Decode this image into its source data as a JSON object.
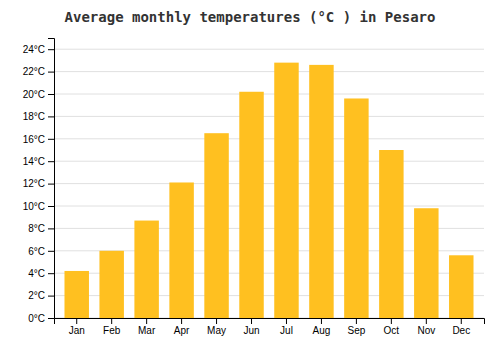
{
  "chart_data": {
    "type": "bar",
    "title": "Average monthly temperatures (°C ) in Pesaro",
    "categories": [
      "Jan",
      "Feb",
      "Mar",
      "Apr",
      "May",
      "Jun",
      "Jul",
      "Aug",
      "Sep",
      "Oct",
      "Nov",
      "Dec"
    ],
    "values": [
      4.2,
      6.0,
      8.7,
      12.1,
      16.5,
      20.2,
      22.8,
      22.6,
      19.6,
      15.0,
      9.8,
      5.6
    ],
    "color": "#FFC020",
    "ylim": [
      0,
      25
    ],
    "yticks": [
      {
        "value": 0,
        "label": "0°C"
      },
      {
        "value": 2,
        "label": "2°C"
      },
      {
        "value": 4,
        "label": "4°C"
      },
      {
        "value": 6,
        "label": "6°C"
      },
      {
        "value": 8,
        "label": "8°C"
      },
      {
        "value": 10,
        "label": "10°C"
      },
      {
        "value": 12,
        "label": "12°C"
      },
      {
        "value": 14,
        "label": "14°C"
      },
      {
        "value": 16,
        "label": "16°C"
      },
      {
        "value": 18,
        "label": "18°C"
      },
      {
        "value": 20,
        "label": "20°C"
      },
      {
        "value": 22,
        "label": "22°C"
      },
      {
        "value": 24,
        "label": "24°C"
      }
    ],
    "grid": true
  }
}
